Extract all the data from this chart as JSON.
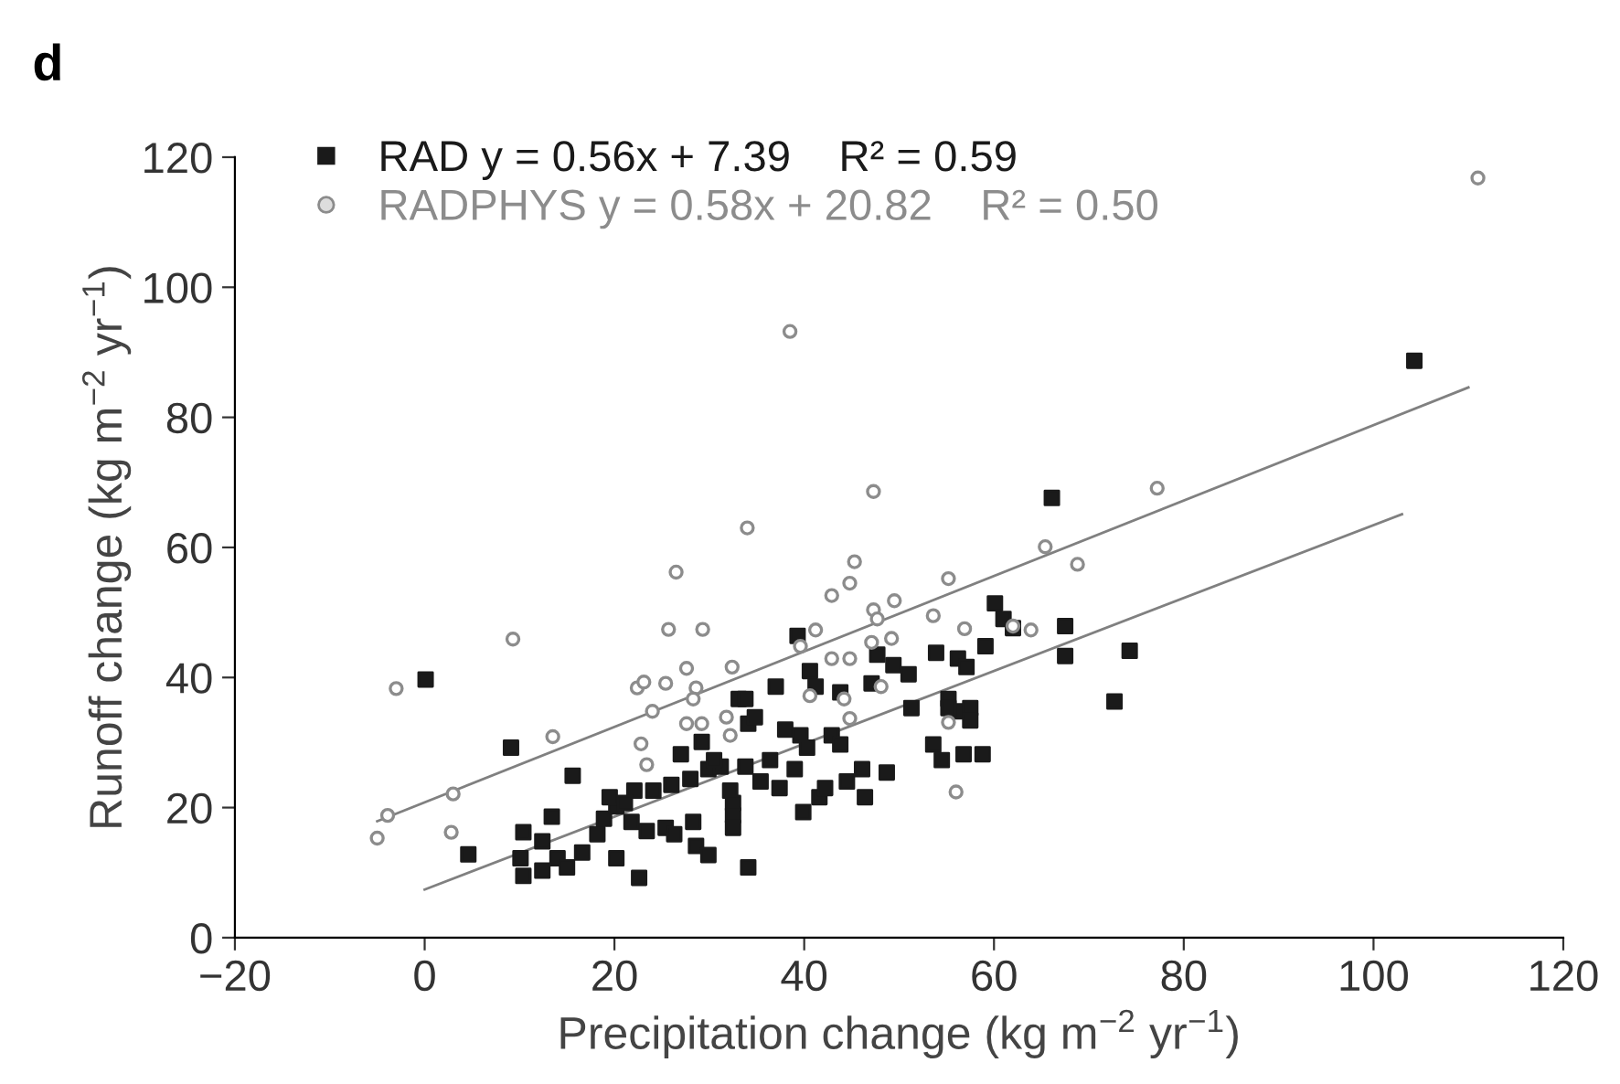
{
  "chart_data": {
    "type": "scatter",
    "title": "d",
    "xlabel": "Precipitation change (kg m$^{−2}$ yr$^{−1}$)",
    "ylabel": "Runoff change (kg m$^{−2}$ yr$^{−1}$)",
    "xlim": [
      -20,
      120
    ],
    "ylim": [
      0,
      120
    ],
    "xticks": [
      {
        "value": -20,
        "label": "−20"
      },
      0,
      20,
      40,
      60,
      80,
      100,
      120
    ],
    "yticks": [
      0,
      20,
      40,
      60,
      80,
      100,
      120
    ],
    "grid": false,
    "legend": "top left",
    "series": [
      {
        "name": "RAD y = 0.56x + 7.39    R² = 0.59",
        "color": "#1a1a1a",
        "marker": "square",
        "x": [
          0.1,
          9.1,
          15.6,
          4.6,
          10.4,
          12.4,
          13.4,
          10.1,
          10.4,
          12.4,
          14,
          15,
          16.6,
          18.2,
          18.9,
          20.2,
          20.2,
          22.6,
          21.8,
          23.4,
          25.4,
          22.1,
          24.1,
          26,
          28,
          29.9,
          31.2,
          26.3,
          28.3,
          28.6,
          29.9,
          27,
          29.2,
          30.5,
          32.2,
          32.5,
          33.1,
          34.1,
          34.1,
          19.5,
          21.1,
          66.1,
          60.1,
          61,
          62,
          67.5,
          67.5,
          74.3,
          72.7,
          53.9,
          56.2,
          57.1,
          59.1,
          47.7,
          49.4,
          51,
          39.3,
          40.6,
          41.2,
          37,
          43.8,
          47.1,
          51.3,
          55.2,
          56.2,
          57.5,
          57.5,
          55.2,
          53.6,
          54.5,
          56.8,
          58.8,
          33.8,
          34.8,
          38,
          39.6,
          40.3,
          39,
          36.4,
          33.8,
          42.9,
          43.8,
          35.4,
          37.4,
          39.9,
          41.6,
          42.2,
          44.5,
          46.1,
          48.7,
          46.4,
          32.5,
          32.5,
          104.3
        ],
        "values": [
          39.7,
          29.2,
          24.9,
          12.8,
          16.2,
          14.8,
          18.6,
          12.2,
          9.5,
          10.3,
          12.2,
          10.8,
          13.1,
          15.9,
          18.3,
          20.2,
          12.2,
          9.2,
          17.8,
          16.4,
          16.9,
          22.6,
          22.6,
          23.5,
          24.4,
          25.9,
          26.3,
          15.9,
          17.8,
          14.1,
          12.7,
          28.2,
          30.1,
          27.3,
          22.6,
          18.8,
          36.7,
          32.9,
          10.8,
          21.6,
          20.7,
          67.6,
          51.4,
          49,
          47.6,
          47.9,
          43.3,
          44.1,
          36.3,
          43.8,
          42.9,
          41.6,
          44.8,
          43.5,
          41.9,
          40.5,
          46.4,
          41,
          38.6,
          38.6,
          37.7,
          39.1,
          35.3,
          36.7,
          34.8,
          35.3,
          33.4,
          35.3,
          29.7,
          27.3,
          28.2,
          28.2,
          36.7,
          33.9,
          32,
          31.1,
          29.2,
          25.9,
          27.3,
          26.3,
          31.1,
          29.7,
          24,
          23,
          19.3,
          21.6,
          23,
          24,
          25.9,
          25.4,
          21.6,
          20.7,
          16.9,
          88.7
        ]
      },
      {
        "name": "RADPHYS y = 0.58x + 20.82    R² = 0.50",
        "color": "#8c8c8c",
        "marker": "circle",
        "x": [
          -3,
          9.3,
          26.5,
          25.7,
          29.3,
          34,
          13.5,
          3,
          -3.9,
          -5,
          2.8,
          24,
          22.8,
          23.4,
          22.4,
          23.1,
          25.4,
          27.6,
          32.4,
          28.6,
          28.3,
          27.6,
          29.2,
          31.8,
          32.2,
          47.3,
          45.3,
          44.8,
          42.9,
          47.3,
          49.5,
          47.7,
          55.2,
          65.4,
          68.8,
          53.6,
          56.9,
          63.9,
          62,
          41.2,
          39.6,
          42.9,
          44.8,
          47.1,
          49.2,
          40.6,
          44.2,
          48.1,
          44.8,
          55.2,
          56,
          111,
          77.2,
          38.5
        ],
        "values": [
          38.3,
          45.9,
          56.2,
          47.4,
          47.4,
          63,
          30.9,
          22.1,
          18.8,
          15.3,
          16.2,
          34.8,
          29.8,
          26.6,
          38.4,
          39.3,
          39.1,
          41.4,
          41.6,
          38.4,
          36.7,
          32.9,
          32.9,
          33.9,
          31.1,
          68.6,
          57.8,
          54.5,
          52.6,
          50.4,
          51.8,
          49,
          55.2,
          60.1,
          57.4,
          49.5,
          47.5,
          47.3,
          47.9,
          47.3,
          44.8,
          42.9,
          42.9,
          45.4,
          46,
          37.2,
          36.7,
          38.6,
          33.7,
          33.1,
          22.4,
          116.8,
          69.1,
          93.2
        ]
      },
      {
        "type": "line",
        "color": "#808080",
        "marker": "none",
        "x": [
          0,
          103
        ],
        "values": [
          7.4,
          65.1
        ]
      },
      {
        "type": "line",
        "color": "#808080",
        "marker": "none",
        "x": [
          -5,
          110
        ],
        "values": [
          17.9,
          84.6
        ]
      }
    ]
  }
}
